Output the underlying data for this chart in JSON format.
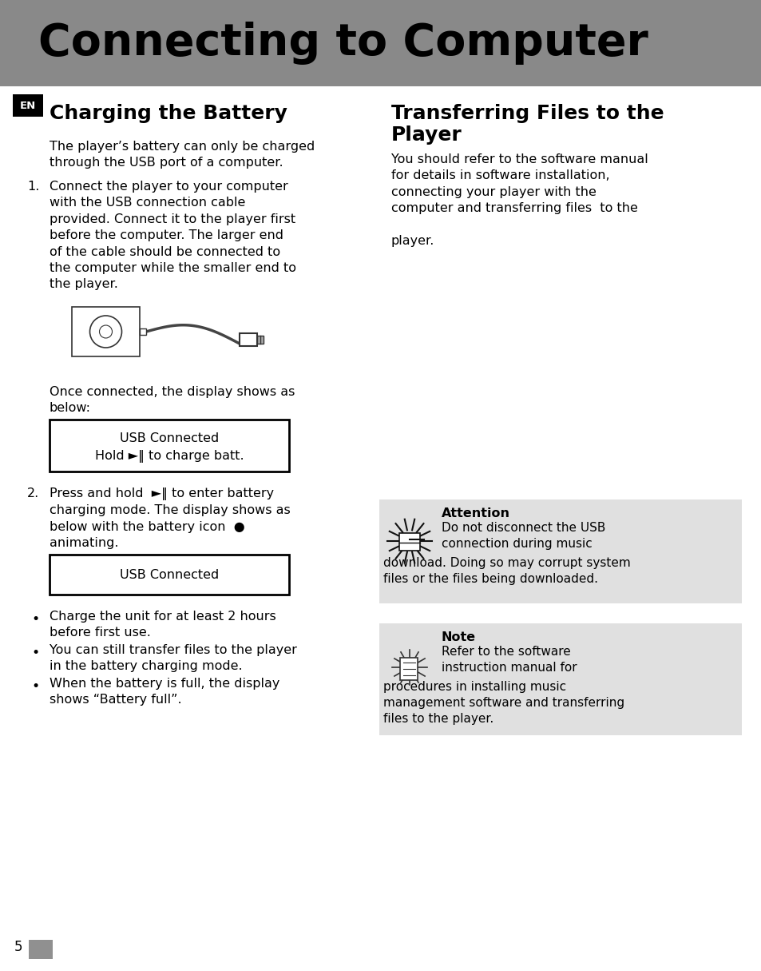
{
  "bg_color": "#ffffff",
  "header_bg": "#898989",
  "header_text": "Connecting to Computer",
  "header_text_color": "#000000",
  "header_fontsize": 40,
  "en_badge_bg": "#000000",
  "en_badge_text": "EN",
  "left_col_title": "Charging the Battery",
  "right_col_title": "Transferring Files to the\nPlayer",
  "col_title_fontsize": 18,
  "body_fontsize": 11.5,
  "left_intro": "The player’s battery can only be charged\nthrough the USB port of a computer.",
  "step1_text": "Connect the player to your computer\nwith the USB connection cable\nprovided. Connect it to the player first\nbefore the computer. The larger end\nof the cable should be connected to\nthe computer while the smaller end to\nthe player.",
  "once_connected": "Once connected, the display shows as\nbelow:",
  "usb_box1_line1": "USB Connected",
  "usb_box1_line2": "Hold ►‖ to charge batt.",
  "step2_text": "Press and hold  ►‖ to enter battery\ncharging mode. The display shows as\nbelow with the battery icon  ●\nanimating.",
  "usb_box2_text": "USB Connected",
  "bullets": [
    "Charge the unit for at least 2 hours\nbefore first use.",
    "You can still transfer files to the player\nin the battery charging mode.",
    "When the battery is full, the display\nshows “Battery full”."
  ],
  "right_para": "You should refer to the software manual\nfor details in software installation,\nconnecting your player with the\ncomputer and transferring files  to the\n\nplayer.",
  "attention_title": "Attention",
  "attention_body": "Do not disconnect the USB\nconnection during music\ndownload. Doing so may corrupt system\nfiles or the files being downloaded.",
  "note_title": "Note",
  "note_body": "Refer to the software\ninstruction manual for\nprocedures in installing music\nmanagement software and transferring\nfiles to the player.",
  "note_box_bg": "#e0e0e0",
  "page_num": "5",
  "page_box_color": "#909090"
}
